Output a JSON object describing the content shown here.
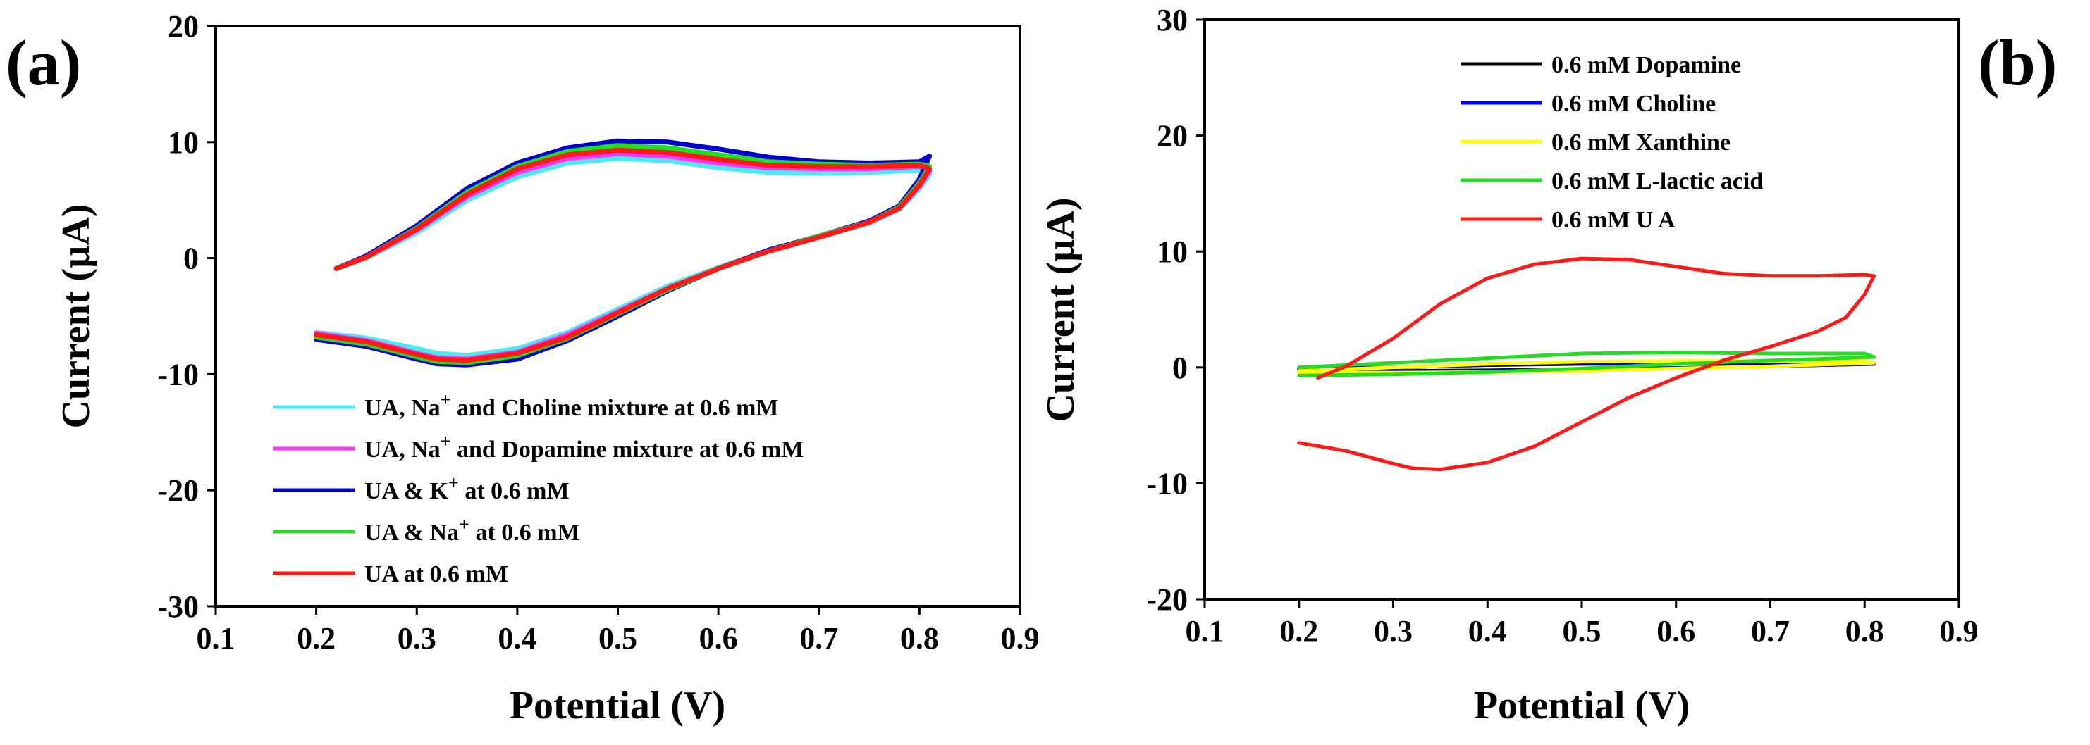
{
  "chart_data": [
    {
      "panel_label": "(a)",
      "type": "line",
      "xlabel": "Potential (V)",
      "ylabel": "Current (µA)",
      "xlim": [
        0.1,
        0.9
      ],
      "ylim": [
        -30,
        20
      ],
      "xticks": [
        "0.1",
        "0.2",
        "0.3",
        "0.4",
        "0.5",
        "0.6",
        "0.7",
        "0.8",
        "0.9"
      ],
      "yticks": [
        "20",
        "10",
        "0",
        "-10",
        "-20",
        "-30"
      ],
      "legend_position": "bottom-left",
      "series": [
        {
          "name": "UA, Na+ and Choline mixture at 0.6 mM",
          "legend_main": "UA, Na",
          "legend_sup": "+",
          "legend_rest": " and Choline mixture at 0.6 mM",
          "color": "#4de8f0",
          "x": [
            0.22,
            0.25,
            0.3,
            0.35,
            0.4,
            0.45,
            0.5,
            0.55,
            0.6,
            0.65,
            0.7,
            0.75,
            0.8,
            0.81,
            0.8,
            0.78,
            0.75,
            0.7,
            0.65,
            0.6,
            0.55,
            0.5,
            0.45,
            0.4,
            0.35,
            0.32,
            0.3,
            0.25,
            0.2
          ],
          "y": [
            -0.9,
            0.0,
            2.2,
            5.0,
            7.0,
            8.2,
            8.6,
            8.4,
            7.8,
            7.4,
            7.3,
            7.4,
            7.6,
            7.2,
            6.0,
            4.2,
            3.0,
            1.8,
            0.6,
            -0.8,
            -2.4,
            -4.4,
            -6.4,
            -7.8,
            -8.4,
            -8.2,
            -7.8,
            -6.9,
            -6.4
          ]
        },
        {
          "name": "UA, Na+ and Dopamine mixture at 0.6 mM",
          "legend_main": "UA, Na",
          "legend_sup": "+",
          "legend_rest": " and Dopamine mixture at 0.6 mM",
          "color": "#ff33ff",
          "x": [
            0.22,
            0.25,
            0.3,
            0.35,
            0.4,
            0.45,
            0.5,
            0.55,
            0.6,
            0.65,
            0.7,
            0.75,
            0.8,
            0.81,
            0.8,
            0.78,
            0.75,
            0.7,
            0.65,
            0.6,
            0.55,
            0.5,
            0.45,
            0.4,
            0.35,
            0.32,
            0.3,
            0.25,
            0.2
          ],
          "y": [
            -0.9,
            0.1,
            2.4,
            5.3,
            7.4,
            8.6,
            9.0,
            8.8,
            8.2,
            7.8,
            7.7,
            7.7,
            7.9,
            7.5,
            6.2,
            4.3,
            3.1,
            1.8,
            0.6,
            -0.9,
            -2.6,
            -4.6,
            -6.6,
            -8.1,
            -8.7,
            -8.6,
            -8.2,
            -7.1,
            -6.5
          ]
        },
        {
          "name": "UA & K+ at 0.6 mM",
          "legend_main": "UA & K",
          "legend_sup": "+",
          "legend_rest": " at 0.6 mM",
          "color": "#0000cc",
          "x": [
            0.22,
            0.25,
            0.3,
            0.35,
            0.4,
            0.45,
            0.5,
            0.55,
            0.6,
            0.65,
            0.7,
            0.75,
            0.8,
            0.81,
            0.8,
            0.78,
            0.75,
            0.7,
            0.65,
            0.6,
            0.55,
            0.5,
            0.45,
            0.4,
            0.35,
            0.32,
            0.3,
            0.25,
            0.2
          ],
          "y": [
            -0.9,
            0.2,
            2.8,
            6.0,
            8.2,
            9.5,
            10.1,
            10.0,
            9.4,
            8.7,
            8.3,
            8.2,
            8.3,
            8.8,
            6.8,
            4.5,
            3.2,
            1.9,
            0.7,
            -0.9,
            -2.8,
            -5.0,
            -7.1,
            -8.7,
            -9.2,
            -9.1,
            -8.7,
            -7.6,
            -7.0
          ]
        },
        {
          "name": "UA & Na+ at 0.6 mM",
          "legend_main": "UA & Na",
          "legend_sup": "+",
          "legend_rest": " at 0.6 mM",
          "color": "#22dd22",
          "x": [
            0.22,
            0.25,
            0.3,
            0.35,
            0.4,
            0.45,
            0.5,
            0.55,
            0.6,
            0.65,
            0.7,
            0.75,
            0.8,
            0.81,
            0.8,
            0.78,
            0.75,
            0.7,
            0.65,
            0.6,
            0.55,
            0.5,
            0.45,
            0.4,
            0.35,
            0.32,
            0.3,
            0.25,
            0.2
          ],
          "y": [
            -0.9,
            0.1,
            2.6,
            5.7,
            7.9,
            9.2,
            9.7,
            9.5,
            8.9,
            8.3,
            8.1,
            8.0,
            8.1,
            7.9,
            6.5,
            4.4,
            3.1,
            1.9,
            0.6,
            -0.9,
            -2.7,
            -4.8,
            -6.9,
            -8.4,
            -9.0,
            -8.9,
            -8.5,
            -7.4,
            -6.8
          ]
        },
        {
          "name": "UA at 0.6 mM",
          "legend_main": "UA at 0.6 mM",
          "legend_sup": "",
          "legend_rest": "",
          "color": "#ff1a1a",
          "x": [
            0.22,
            0.25,
            0.3,
            0.35,
            0.4,
            0.45,
            0.5,
            0.55,
            0.6,
            0.65,
            0.7,
            0.75,
            0.8,
            0.81,
            0.8,
            0.78,
            0.75,
            0.7,
            0.65,
            0.6,
            0.55,
            0.5,
            0.45,
            0.4,
            0.35,
            0.32,
            0.3,
            0.25,
            0.2
          ],
          "y": [
            -0.9,
            0.1,
            2.5,
            5.5,
            7.7,
            8.9,
            9.3,
            9.1,
            8.5,
            8.0,
            7.9,
            7.9,
            8.0,
            7.7,
            6.3,
            4.3,
            3.1,
            1.8,
            0.6,
            -0.9,
            -2.6,
            -4.7,
            -6.8,
            -8.2,
            -8.8,
            -8.7,
            -8.3,
            -7.2,
            -6.6
          ]
        }
      ]
    },
    {
      "panel_label": "(b)",
      "type": "line",
      "xlabel": "Potential (V)",
      "ylabel": "Current (µA)",
      "xlim": [
        0.1,
        0.9
      ],
      "ylim": [
        -20,
        30
      ],
      "xticks": [
        "0.1",
        "0.2",
        "0.3",
        "0.4",
        "0.5",
        "0.6",
        "0.7",
        "0.8",
        "0.9"
      ],
      "yticks": [
        "30",
        "20",
        "10",
        "0",
        "-10",
        "-20"
      ],
      "legend_position": "top-right",
      "series": [
        {
          "name": "0.6 mM Dopamine",
          "legend_main": "0.6 mM Dopamine",
          "legend_sup": "",
          "legend_rest": "",
          "color": "#000000",
          "x": [
            0.2,
            0.3,
            0.4,
            0.5,
            0.6,
            0.7,
            0.8,
            0.81,
            0.7,
            0.6,
            0.5,
            0.4,
            0.3,
            0.2
          ],
          "y": [
            -0.1,
            0.0,
            0.2,
            0.3,
            0.35,
            0.35,
            0.35,
            0.3,
            0.1,
            -0.05,
            -0.15,
            -0.25,
            -0.3,
            -0.2
          ]
        },
        {
          "name": "0.6 mM Choline",
          "legend_main": "0.6 mM Choline",
          "legend_sup": "",
          "legend_rest": "",
          "color": "#0000ff",
          "x": [
            0.2,
            0.3,
            0.4,
            0.5,
            0.6,
            0.7,
            0.8,
            0.81,
            0.7,
            0.6,
            0.5,
            0.4,
            0.3,
            0.2
          ],
          "y": [
            -0.2,
            0.0,
            0.3,
            0.4,
            0.45,
            0.45,
            0.45,
            0.3,
            0.1,
            -0.05,
            -0.2,
            -0.3,
            -0.35,
            -0.3
          ]
        },
        {
          "name": "0.6 mM Xanthine",
          "legend_main": "0.6 mM Xanthine",
          "legend_sup": "",
          "legend_rest": "",
          "color": "#ffff00",
          "x": [
            0.2,
            0.3,
            0.4,
            0.5,
            0.6,
            0.7,
            0.8,
            0.81,
            0.7,
            0.6,
            0.5,
            0.4,
            0.3,
            0.2
          ],
          "y": [
            -0.3,
            0.0,
            0.3,
            0.5,
            0.55,
            0.55,
            0.55,
            0.4,
            0.1,
            -0.1,
            -0.3,
            -0.4,
            -0.45,
            -0.4
          ]
        },
        {
          "name": "0.6 mM L-lactic acid",
          "legend_main": "0.6 mM L-lactic acid",
          "legend_sup": "",
          "legend_rest": "",
          "color": "#22dd22",
          "x": [
            0.2,
            0.3,
            0.4,
            0.5,
            0.6,
            0.7,
            0.8,
            0.81,
            0.7,
            0.6,
            0.5,
            0.4,
            0.3,
            0.2
          ],
          "y": [
            0.0,
            0.4,
            0.8,
            1.2,
            1.3,
            1.2,
            1.2,
            0.9,
            0.6,
            0.3,
            -0.1,
            -0.4,
            -0.6,
            -0.7
          ]
        },
        {
          "name": "0.6 mM UA",
          "legend_main": "0.6 mM U A",
          "legend_sup": "",
          "legend_rest": "",
          "color": "#ff1a1a",
          "x": [
            0.22,
            0.25,
            0.3,
            0.35,
            0.4,
            0.45,
            0.5,
            0.55,
            0.6,
            0.65,
            0.7,
            0.75,
            0.8,
            0.81,
            0.8,
            0.78,
            0.75,
            0.7,
            0.65,
            0.6,
            0.55,
            0.5,
            0.45,
            0.4,
            0.35,
            0.32,
            0.3,
            0.25,
            0.2
          ],
          "y": [
            -0.9,
            0.1,
            2.5,
            5.5,
            7.7,
            8.9,
            9.4,
            9.3,
            8.7,
            8.1,
            7.9,
            7.9,
            8.0,
            7.9,
            6.3,
            4.3,
            3.1,
            1.8,
            0.6,
            -0.9,
            -2.6,
            -4.7,
            -6.8,
            -8.2,
            -8.8,
            -8.7,
            -8.3,
            -7.2,
            -6.5
          ]
        }
      ]
    }
  ]
}
